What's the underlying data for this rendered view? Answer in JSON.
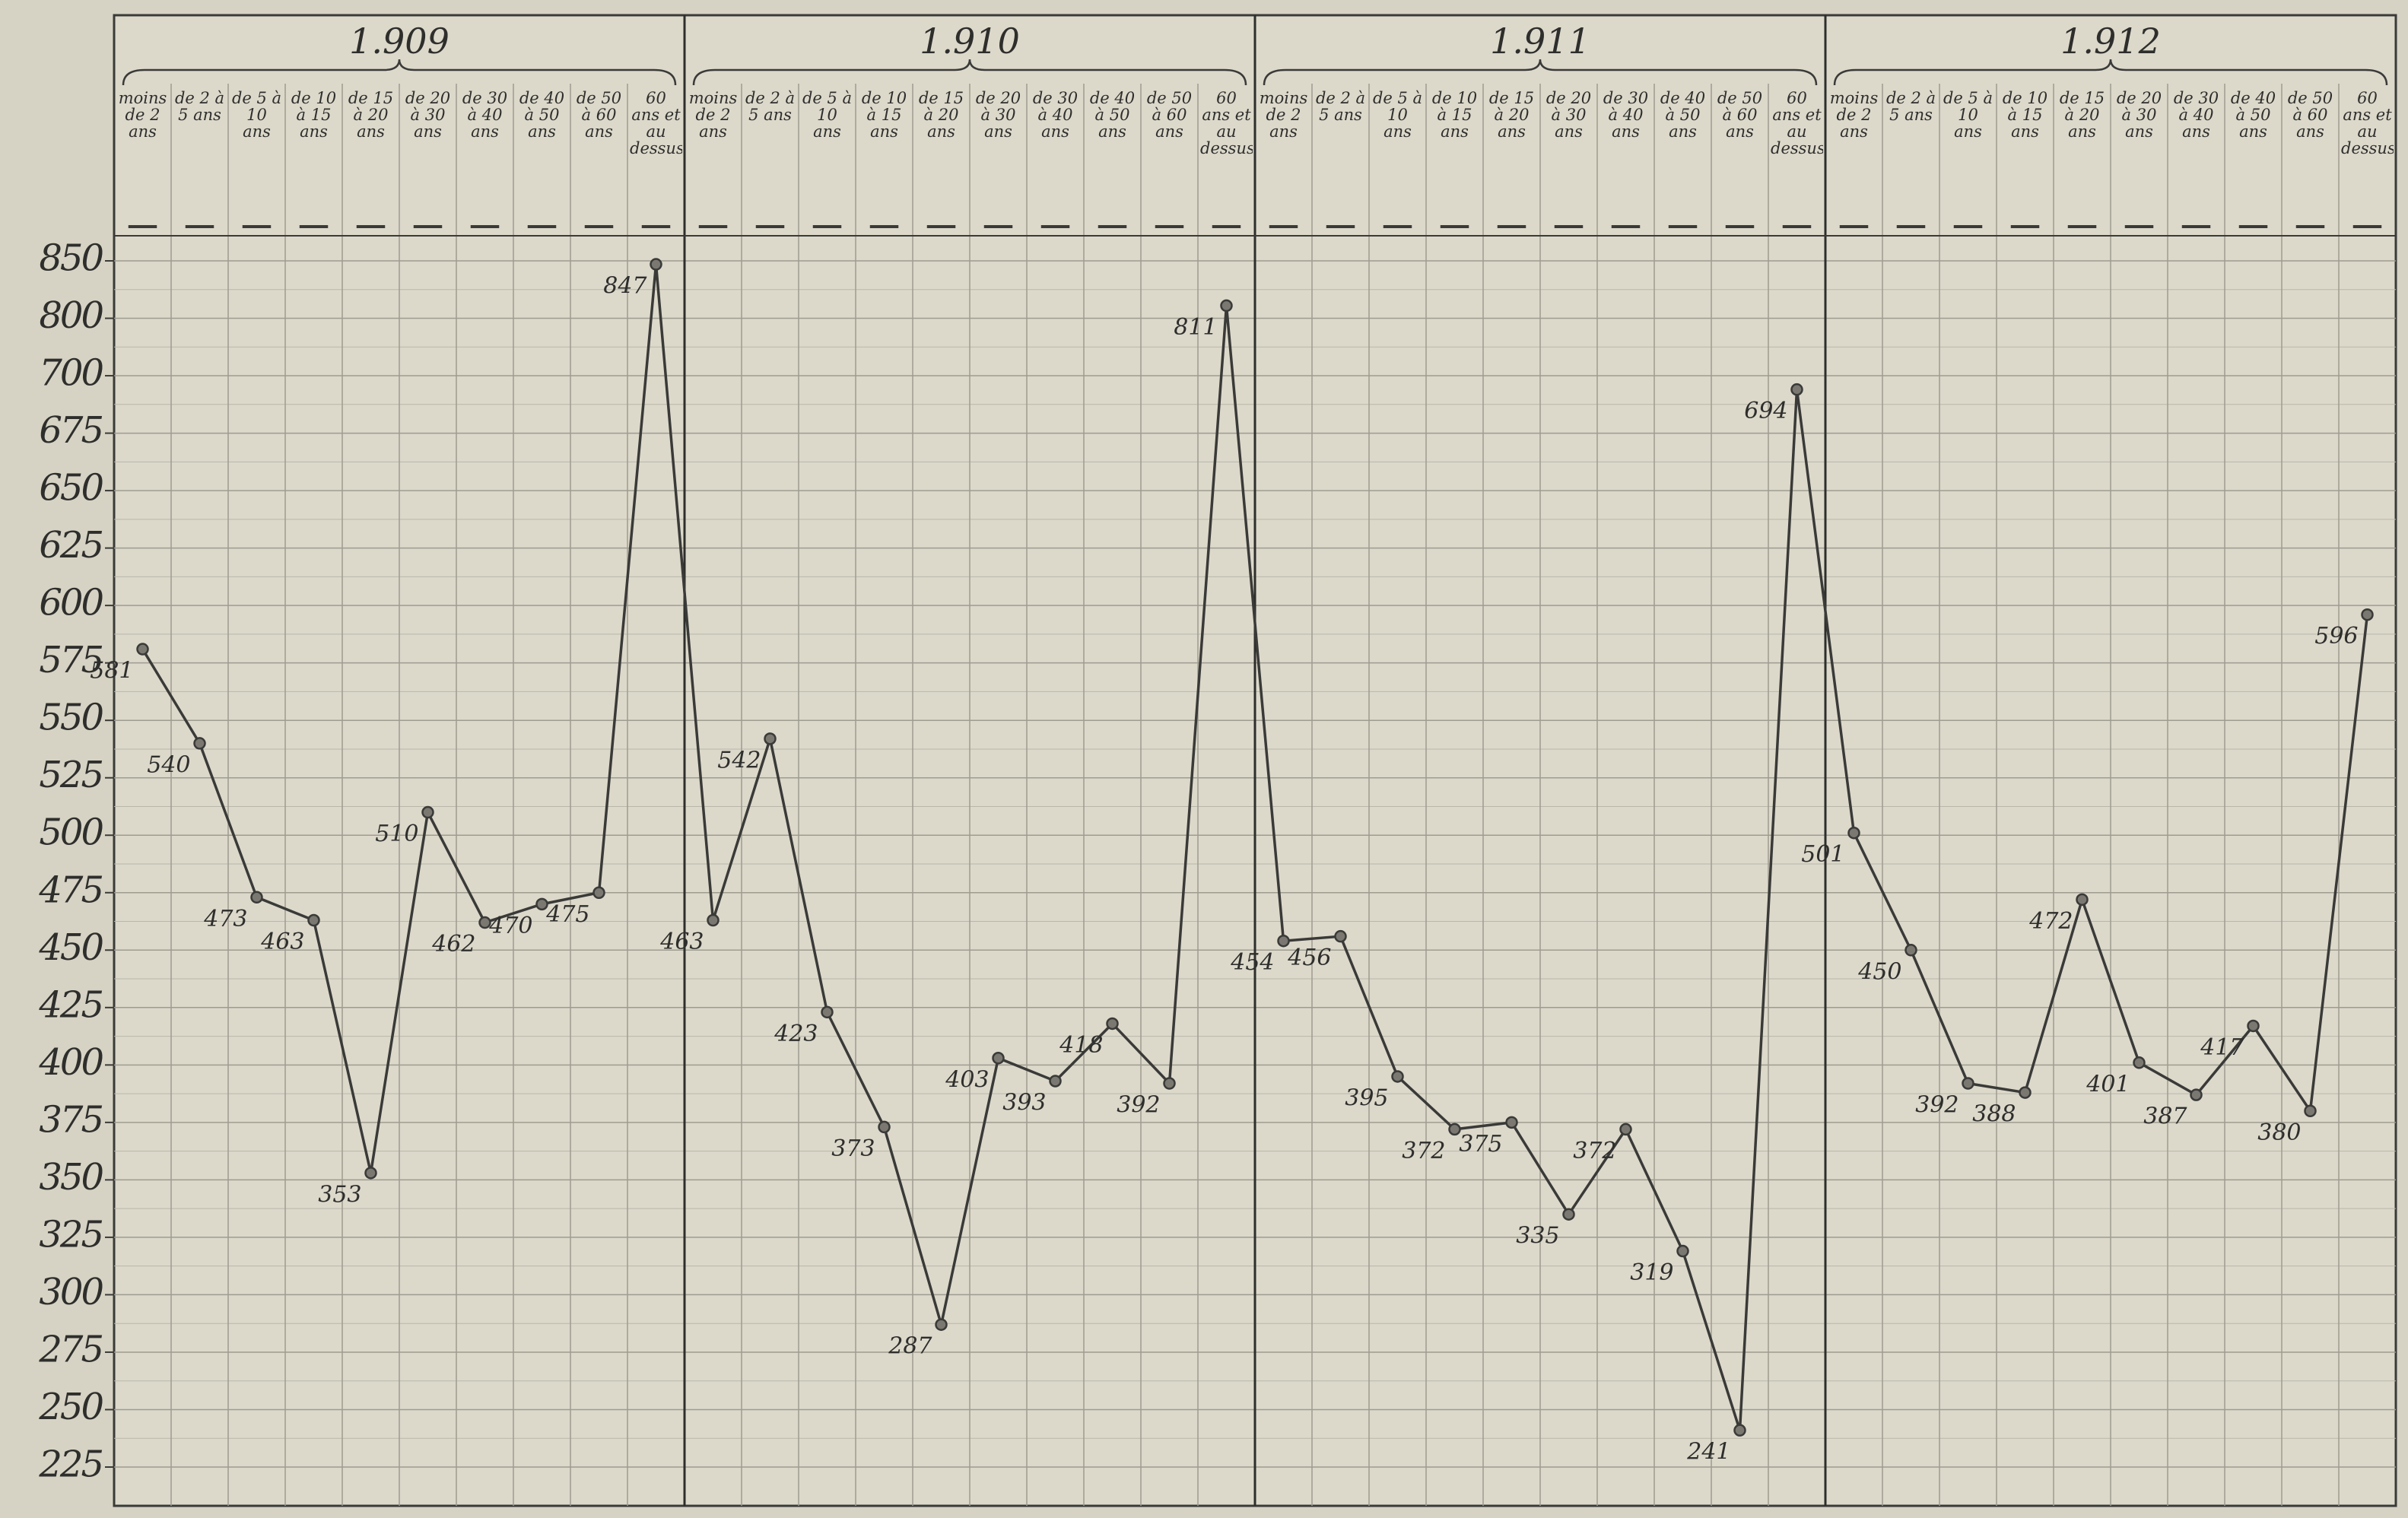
{
  "chart_data": {
    "type": "line",
    "ylim": [
      225,
      850
    ],
    "yticks": [
      850,
      800,
      700,
      675,
      650,
      625,
      600,
      575,
      550,
      525,
      500,
      475,
      450,
      425,
      400,
      375,
      350,
      325,
      300,
      275,
      250,
      225
    ],
    "grid": true,
    "color": "#3a3a38",
    "groups": [
      {
        "name": "1.909",
        "categories": [
          "moins de 2 ans",
          "de 2 à 5 ans",
          "de 5 à 10 ans",
          "de 10 à 15 ans",
          "de 15 à 20 ans",
          "de 20 à 30 ans",
          "de 30 à 40 ans",
          "de 40 à 50 ans",
          "de 50 à 60 ans",
          "60 ans et au dessus"
        ],
        "values": [
          581,
          540,
          473,
          463,
          353,
          510,
          462,
          470,
          475,
          847
        ]
      },
      {
        "name": "1.910",
        "categories": [
          "moins de 2 ans",
          "de 2 à 5 ans",
          "de 5 à 10 ans",
          "de 10 à 15 ans",
          "de 15 à 20 ans",
          "de 20 à 30 ans",
          "de 30 à 40 ans",
          "de 40 à 50 ans",
          "de 50 à 60 ans",
          "60 ans et au dessus"
        ],
        "values": [
          463,
          542,
          423,
          373,
          287,
          403,
          393,
          418,
          392,
          811
        ]
      },
      {
        "name": "1.911",
        "categories": [
          "moins de 2 ans",
          "de 2 à 5 ans",
          "de 5 à 10 ans",
          "de 10 à 15 ans",
          "de 15 à 20 ans",
          "de 20 à 30 ans",
          "de 30 à 40 ans",
          "de 40 à 50 ans",
          "de 50 à 60 ans",
          "60 ans et au dessus"
        ],
        "values": [
          454,
          456,
          395,
          372,
          375,
          335,
          372,
          319,
          241,
          694
        ]
      },
      {
        "name": "1.912",
        "categories": [
          "moins de 2 ans",
          "de 2 à 5 ans",
          "de 5 à 10 ans",
          "de 10 à 15 ans",
          "de 15 à 20 ans",
          "de 20 à 30 ans",
          "de 30 à 40 ans",
          "de 40 à 50 ans",
          "de 50 à 60 ans",
          "60 ans et au dessus"
        ],
        "values": [
          501,
          450,
          392,
          388,
          472,
          401,
          387,
          417,
          380,
          596
        ]
      }
    ]
  }
}
